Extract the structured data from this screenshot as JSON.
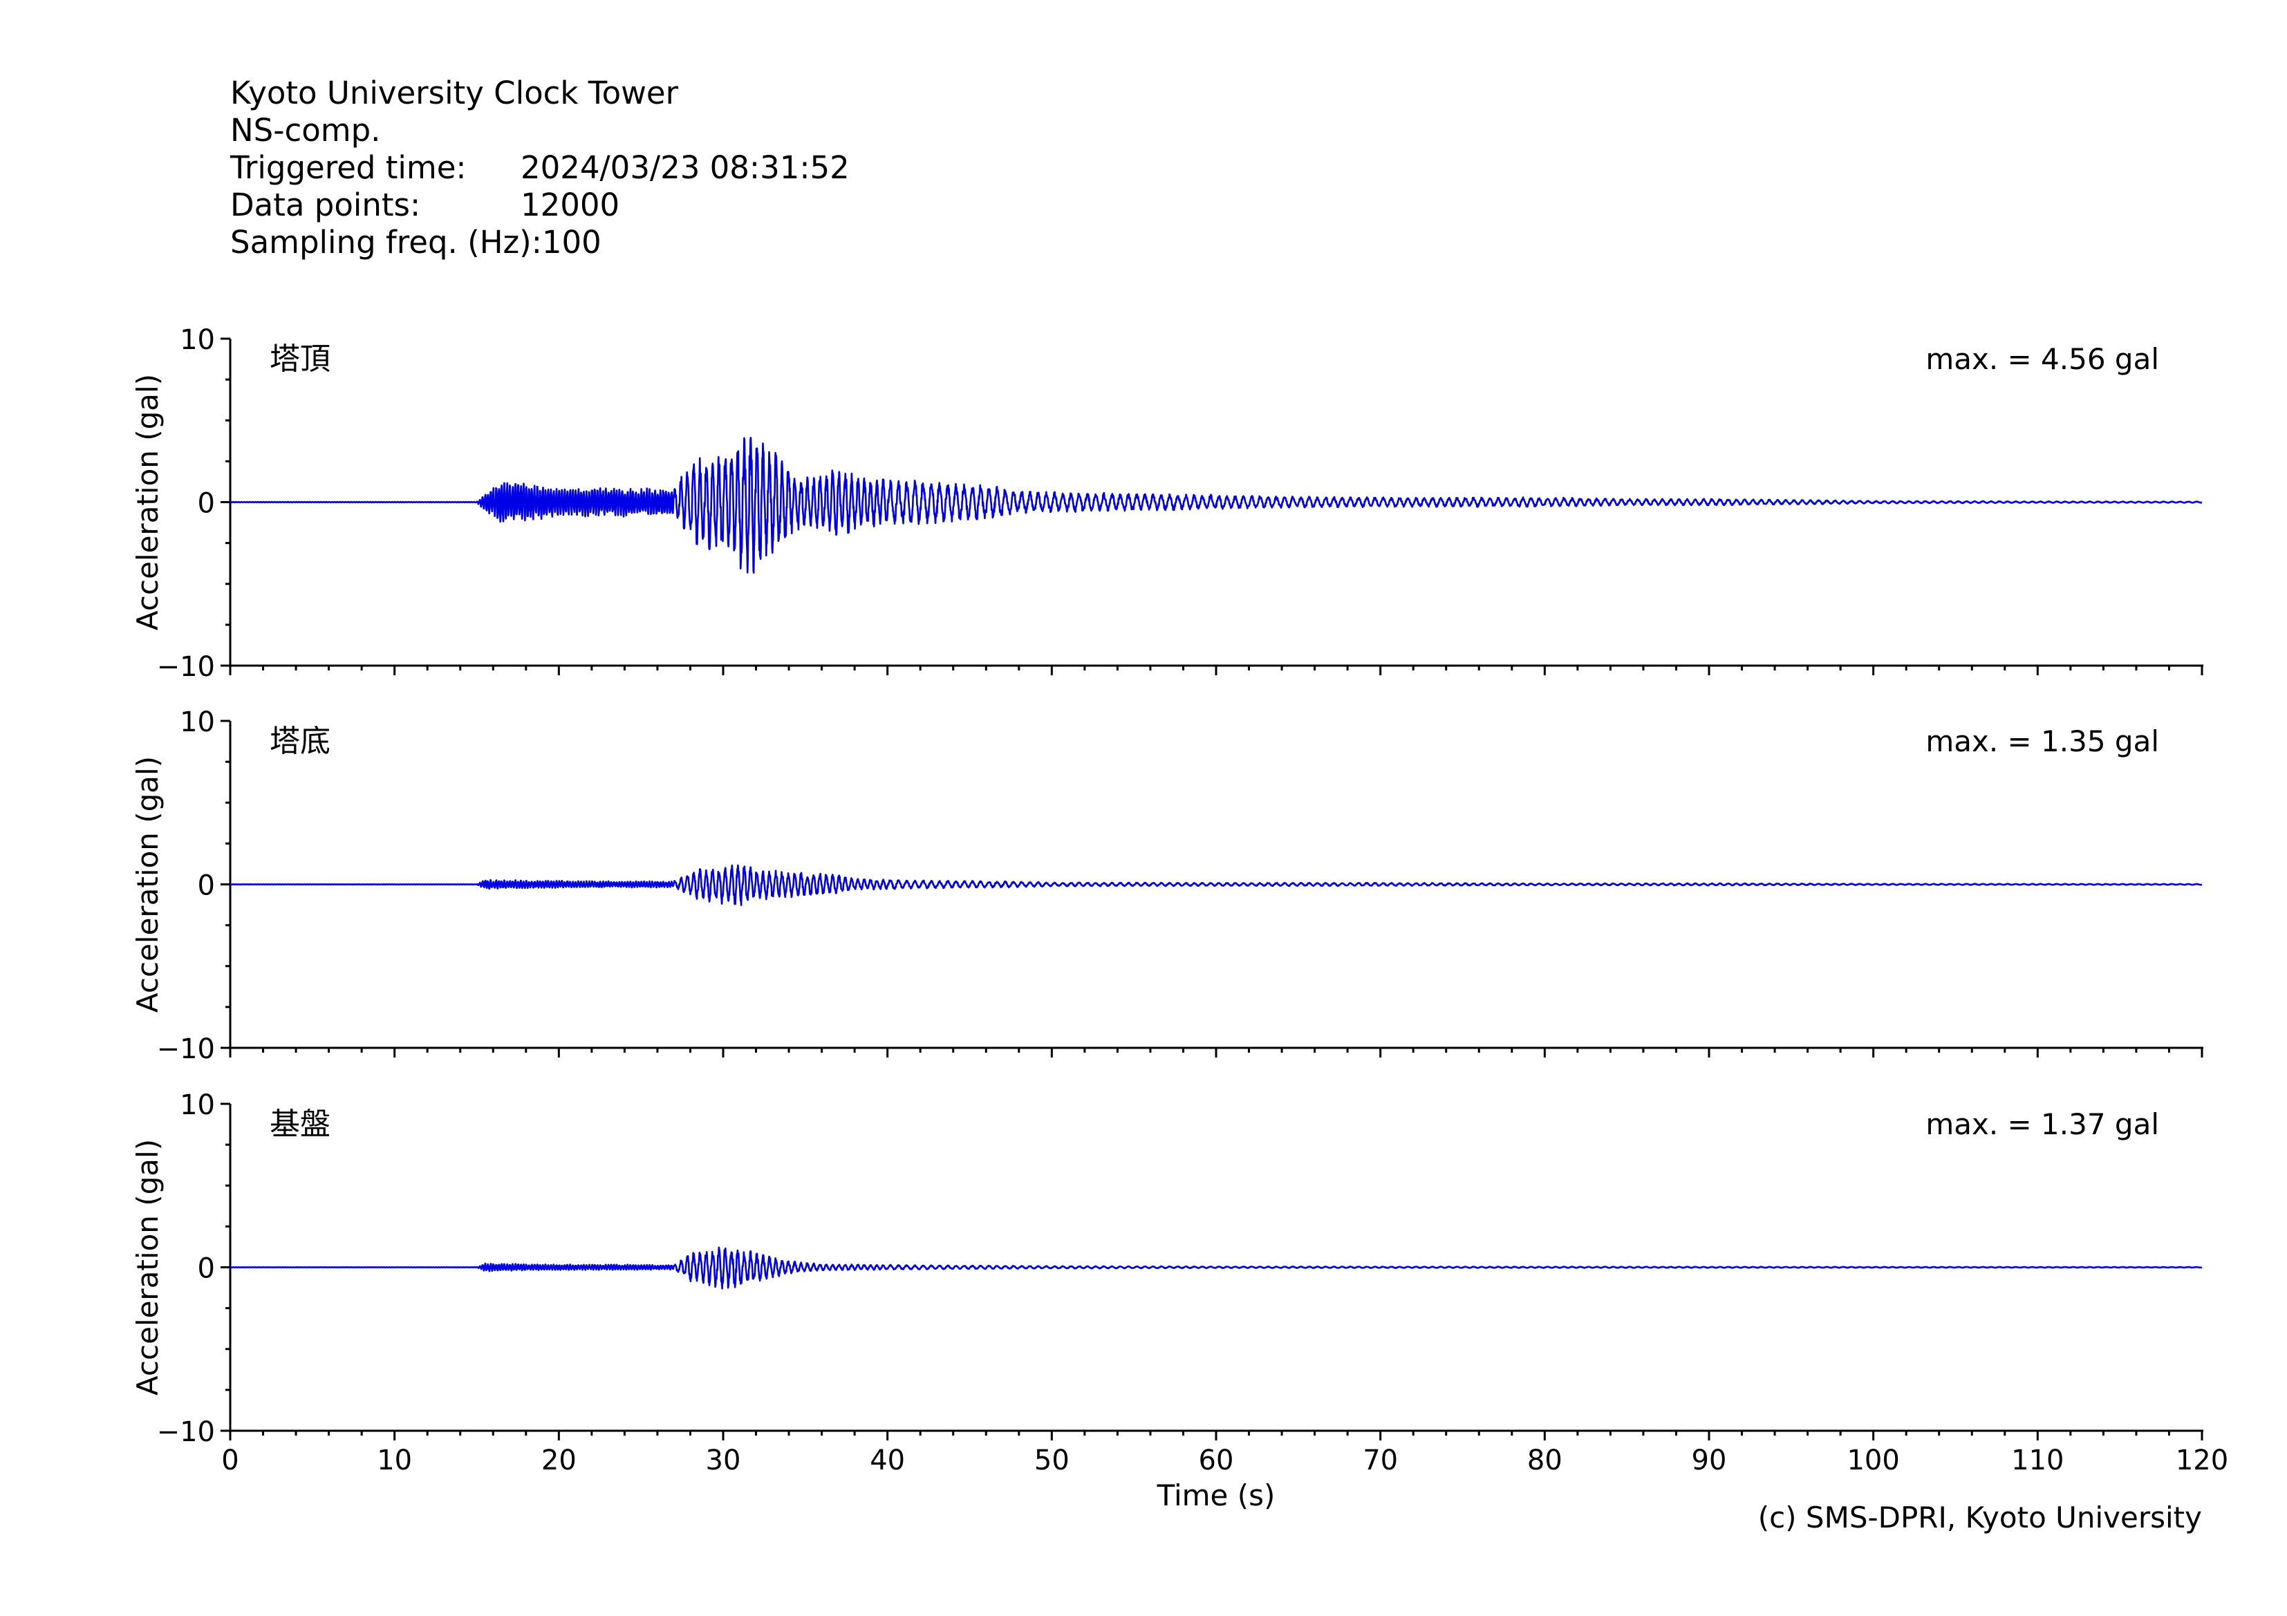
{
  "header": {
    "station": "Kyoto University Clock Tower",
    "component": "NS-comp.",
    "triggered_label": "Triggered time:",
    "triggered_value": "2024/03/23 08:31:52",
    "points_label": "Data points:",
    "points_value": "12000",
    "freq_label": "Sampling freq. (Hz):",
    "freq_value": "100"
  },
  "credit": "(c) SMS-DPRI, Kyoto University",
  "colors": {
    "trace": "#0000e6",
    "axis": "#000000"
  },
  "chart_data": {
    "type": "line",
    "xlabel": "Time (s)",
    "ylabel": "Acceleration (gal)",
    "xlim": [
      0,
      120
    ],
    "ylim": [
      -10,
      10
    ],
    "x_ticks": [
      0,
      10,
      20,
      30,
      40,
      50,
      60,
      70,
      80,
      90,
      100,
      110,
      120
    ],
    "y_ticks": [
      10,
      0,
      -10
    ],
    "y_tick_labels": [
      "10",
      "0",
      "−10"
    ],
    "sampling_hz": 100,
    "panels": [
      {
        "name": "塔頂",
        "max_label": "max. = 4.56 gal",
        "max": 4.56,
        "envelope": [
          [
            0,
            0.02
          ],
          [
            15,
            0.02
          ],
          [
            15.5,
            0.6
          ],
          [
            16.5,
            1.3
          ],
          [
            18,
            1.2
          ],
          [
            20,
            0.9
          ],
          [
            24,
            0.9
          ],
          [
            27,
            0.8
          ],
          [
            28,
            2.5
          ],
          [
            29,
            3.2
          ],
          [
            30,
            2.8
          ],
          [
            31,
            4.3
          ],
          [
            32,
            4.56
          ],
          [
            33,
            3.5
          ],
          [
            34,
            2.2
          ],
          [
            35,
            1.6
          ],
          [
            37,
            2.3
          ],
          [
            38,
            1.7
          ],
          [
            40,
            1.5
          ],
          [
            43,
            1.3
          ],
          [
            46,
            1.1
          ],
          [
            48,
            0.7
          ],
          [
            52,
            0.6
          ],
          [
            55,
            0.55
          ],
          [
            60,
            0.45
          ],
          [
            65,
            0.35
          ],
          [
            70,
            0.3
          ],
          [
            80,
            0.3
          ],
          [
            85,
            0.2
          ],
          [
            90,
            0.2
          ],
          [
            95,
            0.15
          ],
          [
            100,
            0.08
          ],
          [
            110,
            0.05
          ],
          [
            120,
            0.04
          ]
        ]
      },
      {
        "name": "塔底",
        "max_label": "max. = 1.35 gal",
        "max": 1.35,
        "envelope": [
          [
            0,
            0.01
          ],
          [
            15,
            0.01
          ],
          [
            15.5,
            0.3
          ],
          [
            18,
            0.25
          ],
          [
            22,
            0.2
          ],
          [
            27,
            0.2
          ],
          [
            28,
            0.8
          ],
          [
            29,
            1.1
          ],
          [
            31,
            1.35
          ],
          [
            32,
            1.0
          ],
          [
            34,
            0.8
          ],
          [
            36,
            0.7
          ],
          [
            37,
            0.6
          ],
          [
            38,
            0.35
          ],
          [
            42,
            0.25
          ],
          [
            47,
            0.2
          ],
          [
            50,
            0.12
          ],
          [
            60,
            0.1
          ],
          [
            70,
            0.1
          ],
          [
            80,
            0.06
          ],
          [
            90,
            0.07
          ],
          [
            100,
            0.04
          ],
          [
            120,
            0.03
          ]
        ]
      },
      {
        "name": "基盤",
        "max_label": "max. = 1.37 gal",
        "max": 1.37,
        "envelope": [
          [
            0,
            0.01
          ],
          [
            15,
            0.01
          ],
          [
            15.5,
            0.25
          ],
          [
            18,
            0.2
          ],
          [
            27,
            0.15
          ],
          [
            28,
            0.9
          ],
          [
            29,
            1.1
          ],
          [
            30,
            1.37
          ],
          [
            31,
            1.2
          ],
          [
            32,
            0.9
          ],
          [
            33,
            0.7
          ],
          [
            34,
            0.4
          ],
          [
            36,
            0.2
          ],
          [
            40,
            0.15
          ],
          [
            50,
            0.08
          ],
          [
            60,
            0.05
          ],
          [
            80,
            0.04
          ],
          [
            120,
            0.02
          ]
        ]
      }
    ]
  }
}
